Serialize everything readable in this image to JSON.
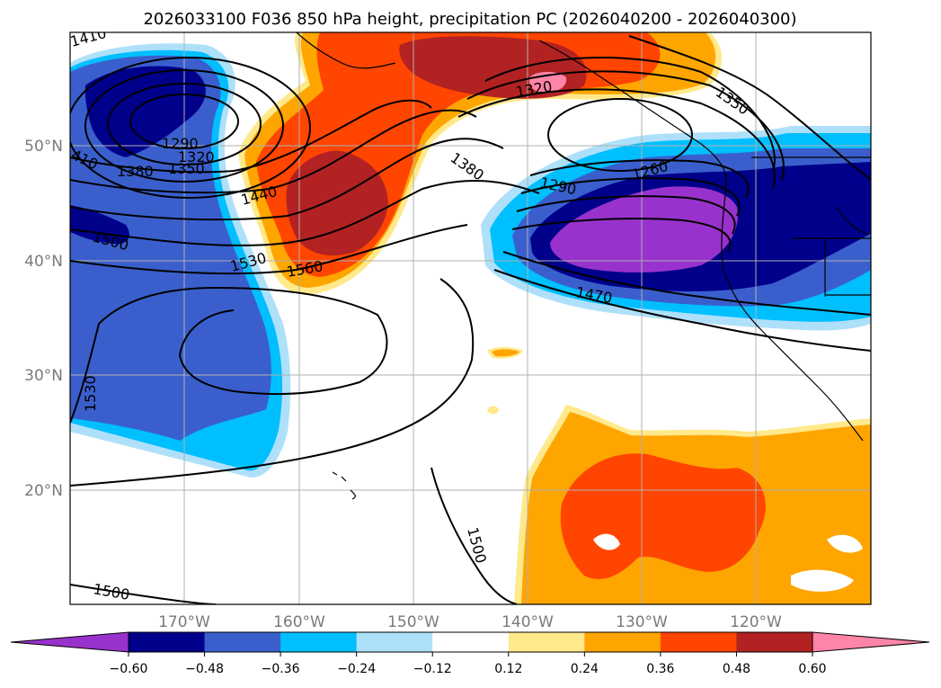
{
  "title": "2026033100 F036 850 hPa height, precipitation PC (2026040200 - 2026040300)",
  "axes": {
    "lon_ticks": [
      "170°W",
      "160°W",
      "150°W",
      "140°W",
      "130°W",
      "120°W"
    ],
    "lat_ticks": [
      "50°N",
      "40°N",
      "30°N",
      "20°N"
    ]
  },
  "colorbar": {
    "ticks": [
      "−0.60",
      "−0.48",
      "−0.36",
      "−0.24",
      "−0.12",
      "0.12",
      "0.24",
      "0.36",
      "0.48",
      "0.60"
    ],
    "colors": [
      "#9932cc",
      "#00008b",
      "#3a5fcd",
      "#00bfff",
      "#aee0fa",
      "#ffffff",
      "#ffe98a",
      "#ffa500",
      "#ff4500",
      "#b22222",
      "#ff85a8"
    ]
  },
  "contour_labels": {
    "c1410": "1410",
    "c1290a": "1290",
    "c1320a": "1320",
    "c1350a": "1350",
    "c1380a": "1380",
    "c410": "410",
    "c1440": "1440",
    "c1500a": "1500",
    "c1530a": "1530",
    "c1560": "1560",
    "c1530b": "1530",
    "c1380b": "1380",
    "c1320b": "1320",
    "c1350b": "1350",
    "c1290b": "1290",
    "c1260": "1260",
    "c1470": "1470",
    "c1500b": "1500",
    "c1500c": "1500"
  }
}
